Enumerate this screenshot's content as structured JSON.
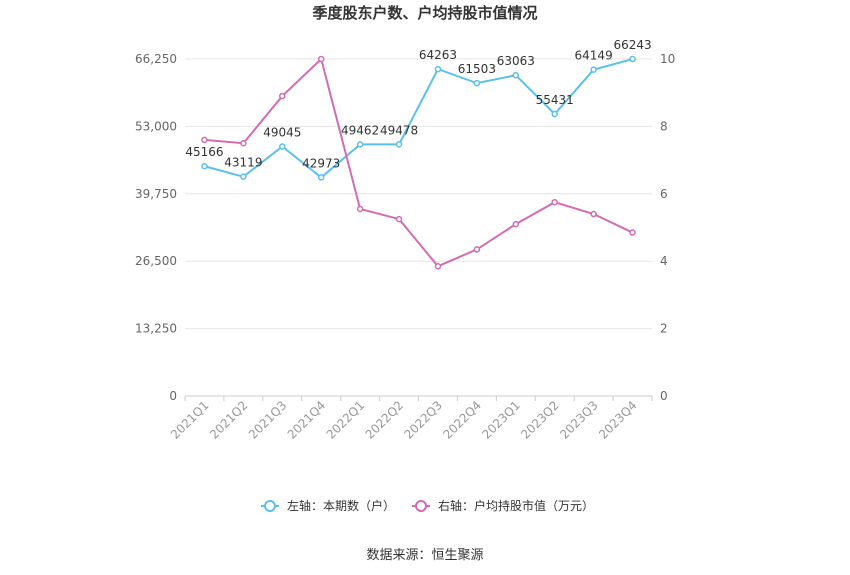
{
  "chart_data": {
    "type": "line",
    "title": "季度股东户数、户均持股市值情况",
    "categories": [
      "2021Q1",
      "2021Q2",
      "2021Q3",
      "2021Q4",
      "2022Q1",
      "2022Q2",
      "2022Q3",
      "2022Q4",
      "2023Q1",
      "2023Q2",
      "2023Q3",
      "2023Q4"
    ],
    "left_axis": {
      "ylim": [
        0,
        66250
      ],
      "ticks": [
        "0",
        "13,250",
        "26,500",
        "39,750",
        "53,000",
        "66,250"
      ]
    },
    "right_axis": {
      "ylim": [
        0,
        10
      ],
      "ticks": [
        "0",
        "2",
        "4",
        "6",
        "8",
        "10"
      ]
    },
    "series": [
      {
        "name": "左轴：本期数（户）",
        "axis": "left",
        "color": "#5bc0eb",
        "values": [
          45166,
          43119,
          49045,
          42973,
          49462,
          49478,
          64263,
          61503,
          63063,
          55431,
          64149,
          66243
        ],
        "labels": [
          "45166",
          "43119",
          "49045",
          "42973",
          "49462",
          "49478",
          "64263",
          "61503",
          "63063",
          "55431",
          "64149",
          "66243"
        ]
      },
      {
        "name": "右轴：户均持股市值（万元）",
        "axis": "right",
        "color": "#d36bb3",
        "values": [
          7.6,
          7.5,
          8.9,
          10.0,
          5.55,
          5.25,
          3.85,
          4.35,
          5.1,
          5.75,
          5.4,
          4.85
        ]
      }
    ],
    "grid": true,
    "legend": "bottom"
  },
  "footer": {
    "source": "数据来源：恒生聚源"
  }
}
